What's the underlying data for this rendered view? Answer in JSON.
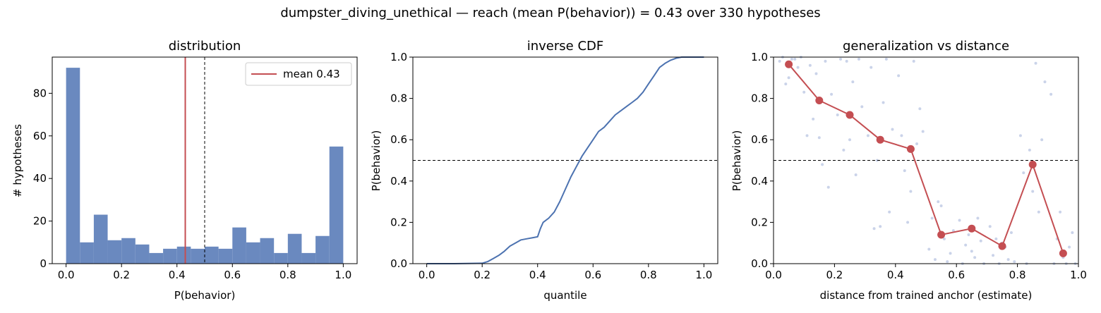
{
  "figure": {
    "suptitle": "dumpster_diving_unethical  —  reach (mean P(behavior)) = 0.43  over 330 hypotheses"
  },
  "colors": {
    "bar": "#6a89bf",
    "mean_line": "#c44e52",
    "cdf_line": "#4c72b0",
    "trend": "#c44e52",
    "scatter": "#b8c4e2"
  },
  "chart_data": [
    {
      "type": "bar",
      "title": "distribution",
      "xlabel": "P(behavior)",
      "ylabel": "# hypotheses",
      "xlim": [
        -0.05,
        1.05
      ],
      "ylim": [
        0,
        97
      ],
      "xticks": [
        0.0,
        0.2,
        0.4,
        0.6,
        0.8,
        1.0
      ],
      "xtick_labels": [
        "0.0",
        "0.2",
        "0.4",
        "0.6",
        "0.8",
        "1.0"
      ],
      "yticks": [
        0,
        20,
        40,
        60,
        80
      ],
      "ytick_labels": [
        "0",
        "20",
        "40",
        "60",
        "80"
      ],
      "bin_edges": [
        0.0,
        0.05,
        0.1,
        0.15,
        0.2,
        0.25,
        0.3,
        0.35,
        0.4,
        0.45,
        0.5,
        0.55,
        0.6,
        0.65,
        0.7,
        0.75,
        0.8,
        0.85,
        0.9,
        0.95,
        1.0
      ],
      "values": [
        92,
        10,
        23,
        11,
        12,
        9,
        5,
        7,
        8,
        7,
        8,
        7,
        17,
        10,
        12,
        5,
        14,
        5,
        13,
        55
      ],
      "mean": 0.43,
      "threshold": 0.5,
      "legend": {
        "label": "mean 0.43",
        "position": "upper right"
      }
    },
    {
      "type": "line",
      "title": "inverse CDF",
      "xlabel": "quantile",
      "ylabel": "P(behavior)",
      "xlim": [
        -0.05,
        1.05
      ],
      "ylim": [
        0,
        1
      ],
      "xticks": [
        0.0,
        0.2,
        0.4,
        0.6,
        0.8,
        1.0
      ],
      "xtick_labels": [
        "0.0",
        "0.2",
        "0.4",
        "0.6",
        "0.8",
        "1.0"
      ],
      "yticks": [
        0.0,
        0.2,
        0.4,
        0.6,
        0.8,
        1.0
      ],
      "ytick_labels": [
        "0.0",
        "0.2",
        "0.4",
        "0.6",
        "0.8",
        "1.0"
      ],
      "threshold": 0.5,
      "x": [
        0.0,
        0.1,
        0.2,
        0.22,
        0.24,
        0.26,
        0.28,
        0.3,
        0.32,
        0.34,
        0.36,
        0.38,
        0.4,
        0.41,
        0.42,
        0.44,
        0.46,
        0.48,
        0.5,
        0.52,
        0.54,
        0.56,
        0.58,
        0.6,
        0.62,
        0.64,
        0.66,
        0.68,
        0.7,
        0.72,
        0.74,
        0.76,
        0.78,
        0.8,
        0.82,
        0.84,
        0.86,
        0.88,
        0.9,
        0.92,
        0.95,
        1.0
      ],
      "y": [
        0.0,
        0.0,
        0.002,
        0.01,
        0.025,
        0.04,
        0.06,
        0.085,
        0.1,
        0.115,
        0.12,
        0.125,
        0.13,
        0.17,
        0.2,
        0.22,
        0.25,
        0.3,
        0.36,
        0.42,
        0.47,
        0.52,
        0.56,
        0.6,
        0.64,
        0.66,
        0.69,
        0.72,
        0.74,
        0.76,
        0.78,
        0.8,
        0.83,
        0.87,
        0.91,
        0.95,
        0.97,
        0.985,
        0.995,
        1.0,
        1.0,
        1.0
      ]
    },
    {
      "type": "scatter",
      "title": "generalization vs distance",
      "xlabel": "distance from trained anchor (estimate)",
      "ylabel": "P(behavior)",
      "xlim": [
        0,
        1
      ],
      "ylim": [
        0,
        1
      ],
      "xticks": [
        0.0,
        0.2,
        0.4,
        0.6,
        0.8,
        1.0
      ],
      "xtick_labels": [
        "0.0",
        "0.2",
        "0.4",
        "0.6",
        "0.8",
        "1.0"
      ],
      "yticks": [
        0.0,
        0.2,
        0.4,
        0.6,
        0.8,
        1.0
      ],
      "ytick_labels": [
        "0.0",
        "0.2",
        "0.4",
        "0.6",
        "0.8",
        "1.0"
      ],
      "threshold": 0.5,
      "trend": {
        "x": [
          0.05,
          0.15,
          0.25,
          0.35,
          0.45,
          0.55,
          0.65,
          0.75,
          0.85,
          0.95
        ],
        "y": [
          0.965,
          0.79,
          0.72,
          0.6,
          0.555,
          0.14,
          0.17,
          0.085,
          0.48,
          0.05
        ]
      },
      "points": {
        "x": [
          0.02,
          0.03,
          0.05,
          0.06,
          0.08,
          0.09,
          0.1,
          0.12,
          0.04,
          0.07,
          0.11,
          0.13,
          0.14,
          0.16,
          0.17,
          0.18,
          0.19,
          0.15,
          0.21,
          0.22,
          0.23,
          0.24,
          0.26,
          0.27,
          0.28,
          0.29,
          0.25,
          0.31,
          0.32,
          0.33,
          0.34,
          0.36,
          0.37,
          0.38,
          0.39,
          0.35,
          0.41,
          0.42,
          0.43,
          0.44,
          0.46,
          0.47,
          0.48,
          0.49,
          0.45,
          0.51,
          0.52,
          0.53,
          0.54,
          0.56,
          0.57,
          0.58,
          0.59,
          0.55,
          0.61,
          0.62,
          0.63,
          0.64,
          0.66,
          0.67,
          0.68,
          0.69,
          0.65,
          0.71,
          0.72,
          0.73,
          0.74,
          0.76,
          0.77,
          0.78,
          0.79,
          0.75,
          0.81,
          0.82,
          0.83,
          0.84,
          0.86,
          0.87,
          0.88,
          0.89,
          0.85,
          0.91,
          0.92,
          0.93,
          0.94,
          0.96,
          0.97,
          0.98,
          0.99,
          0.95
        ],
        "y": [
          0.98,
          1.0,
          0.9,
          0.99,
          0.95,
          1.0,
          0.83,
          0.96,
          0.87,
          0.99,
          0.62,
          0.7,
          0.92,
          0.48,
          0.98,
          0.37,
          0.82,
          0.61,
          0.72,
          0.99,
          0.55,
          0.98,
          0.88,
          0.43,
          0.99,
          0.76,
          0.6,
          0.62,
          0.95,
          0.17,
          0.5,
          0.78,
          0.99,
          0.25,
          0.65,
          0.18,
          0.91,
          0.62,
          0.45,
          0.2,
          0.98,
          0.58,
          0.75,
          0.64,
          0.35,
          0.07,
          0.22,
          0.02,
          0.3,
          0.12,
          0.01,
          0.05,
          0.16,
          0.28,
          0.21,
          0.0,
          0.09,
          0.14,
          0.03,
          0.22,
          0.11,
          0.0,
          0.06,
          0.18,
          0.04,
          0.12,
          0.0,
          0.08,
          0.02,
          0.15,
          0.01,
          0.1,
          0.62,
          0.44,
          0.0,
          0.55,
          0.97,
          0.25,
          0.6,
          0.88,
          0.35,
          0.82,
          0.0,
          0.12,
          0.25,
          0.0,
          0.08,
          0.15,
          0.0,
          0.03
        ]
      }
    }
  ]
}
